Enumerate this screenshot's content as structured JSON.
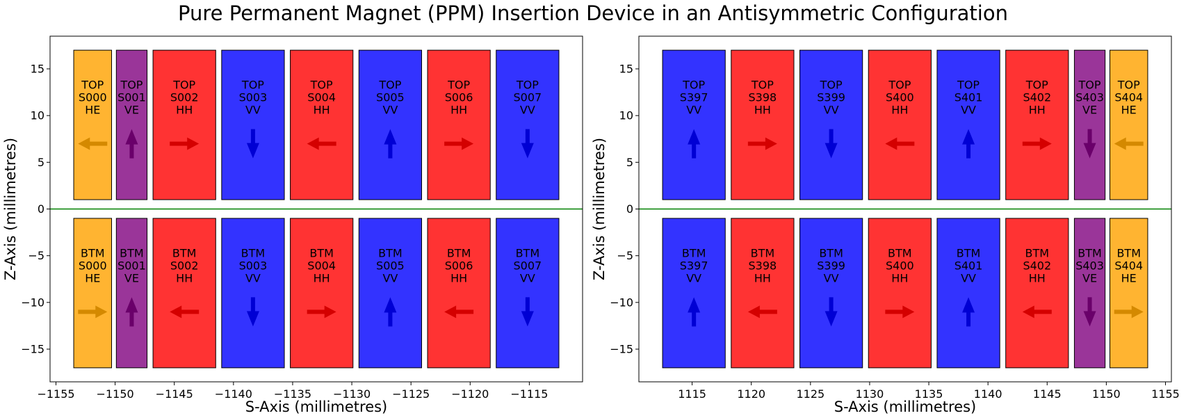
{
  "title": "Pure Permanent Magnet (PPM) Insertion Device in an Antisymmetric Configuration",
  "colors": {
    "HE": "#ffb431",
    "VE": "#9a3599",
    "HH": "#ff3333",
    "VV": "#3333ff",
    "arrow_HE": "#d48900",
    "arrow_VE": "#6a006a",
    "arrow_HH": "#d40000",
    "arrow_VV": "#0000d4",
    "centerline": "#008000"
  },
  "chart_data": [
    {
      "type": "magnet-layout",
      "xlabel": "S-Axis (millimetres)",
      "ylabel": "Z-Axis (millimetres)",
      "xlim": [
        -1155.5,
        -1110.5
      ],
      "ylim": [
        -18.5,
        18.5
      ],
      "xticks": [
        -1155,
        -1150,
        -1145,
        -1140,
        -1135,
        -1130,
        -1125,
        -1120,
        -1115
      ],
      "yticks": [
        15,
        10,
        5,
        0,
        -5,
        -10,
        -15
      ],
      "centerline_z": 0,
      "magnets": [
        {
          "row": "TOP",
          "id": "S000",
          "type": "HE",
          "s0": -1153.5,
          "s1": -1150.3,
          "z0": 1,
          "z1": 17,
          "dir": "left"
        },
        {
          "row": "TOP",
          "id": "S001",
          "type": "VE",
          "s0": -1149.9,
          "s1": -1147.3,
          "z0": 1,
          "z1": 17,
          "dir": "up"
        },
        {
          "row": "TOP",
          "id": "S002",
          "type": "HH",
          "s0": -1146.8,
          "s1": -1141.5,
          "z0": 1,
          "z1": 17,
          "dir": "right"
        },
        {
          "row": "TOP",
          "id": "S003",
          "type": "VV",
          "s0": -1141.0,
          "s1": -1135.7,
          "z0": 1,
          "z1": 17,
          "dir": "down"
        },
        {
          "row": "TOP",
          "id": "S004",
          "type": "HH",
          "s0": -1135.2,
          "s1": -1129.9,
          "z0": 1,
          "z1": 17,
          "dir": "left"
        },
        {
          "row": "TOP",
          "id": "S005",
          "type": "VV",
          "s0": -1129.4,
          "s1": -1124.1,
          "z0": 1,
          "z1": 17,
          "dir": "up"
        },
        {
          "row": "TOP",
          "id": "S006",
          "type": "HH",
          "s0": -1123.6,
          "s1": -1118.3,
          "z0": 1,
          "z1": 17,
          "dir": "right"
        },
        {
          "row": "TOP",
          "id": "S007",
          "type": "VV",
          "s0": -1117.8,
          "s1": -1112.5,
          "z0": 1,
          "z1": 17,
          "dir": "down"
        },
        {
          "row": "BTM",
          "id": "S000",
          "type": "HE",
          "s0": -1153.5,
          "s1": -1150.3,
          "z0": -17,
          "z1": -1,
          "dir": "right"
        },
        {
          "row": "BTM",
          "id": "S001",
          "type": "VE",
          "s0": -1149.9,
          "s1": -1147.3,
          "z0": -17,
          "z1": -1,
          "dir": "up"
        },
        {
          "row": "BTM",
          "id": "S002",
          "type": "HH",
          "s0": -1146.8,
          "s1": -1141.5,
          "z0": -17,
          "z1": -1,
          "dir": "left"
        },
        {
          "row": "BTM",
          "id": "S003",
          "type": "VV",
          "s0": -1141.0,
          "s1": -1135.7,
          "z0": -17,
          "z1": -1,
          "dir": "down"
        },
        {
          "row": "BTM",
          "id": "S004",
          "type": "HH",
          "s0": -1135.2,
          "s1": -1129.9,
          "z0": -17,
          "z1": -1,
          "dir": "right"
        },
        {
          "row": "BTM",
          "id": "S005",
          "type": "VV",
          "s0": -1129.4,
          "s1": -1124.1,
          "z0": -17,
          "z1": -1,
          "dir": "up"
        },
        {
          "row": "BTM",
          "id": "S006",
          "type": "HH",
          "s0": -1123.6,
          "s1": -1118.3,
          "z0": -17,
          "z1": -1,
          "dir": "left"
        },
        {
          "row": "BTM",
          "id": "S007",
          "type": "VV",
          "s0": -1117.8,
          "s1": -1112.5,
          "z0": -17,
          "z1": -1,
          "dir": "down"
        }
      ]
    },
    {
      "type": "magnet-layout",
      "xlabel": "S-Axis (millimetres)",
      "ylabel": "Z-Axis (millimetres)",
      "xlim": [
        1110.5,
        1155.5
      ],
      "ylim": [
        -18.5,
        18.5
      ],
      "xticks": [
        1115,
        1120,
        1125,
        1130,
        1135,
        1140,
        1145,
        1150,
        1155
      ],
      "yticks": [
        15,
        10,
        5,
        0,
        -5,
        -10,
        -15
      ],
      "centerline_z": 0,
      "magnets": [
        {
          "row": "TOP",
          "id": "S397",
          "type": "VV",
          "s0": 1112.5,
          "s1": 1117.8,
          "z0": 1,
          "z1": 17,
          "dir": "up"
        },
        {
          "row": "TOP",
          "id": "S398",
          "type": "HH",
          "s0": 1118.3,
          "s1": 1123.6,
          "z0": 1,
          "z1": 17,
          "dir": "right"
        },
        {
          "row": "TOP",
          "id": "S399",
          "type": "VV",
          "s0": 1124.1,
          "s1": 1129.4,
          "z0": 1,
          "z1": 17,
          "dir": "down"
        },
        {
          "row": "TOP",
          "id": "S400",
          "type": "HH",
          "s0": 1129.9,
          "s1": 1135.2,
          "z0": 1,
          "z1": 17,
          "dir": "left"
        },
        {
          "row": "TOP",
          "id": "S401",
          "type": "VV",
          "s0": 1135.7,
          "s1": 1141.0,
          "z0": 1,
          "z1": 17,
          "dir": "up"
        },
        {
          "row": "TOP",
          "id": "S402",
          "type": "HH",
          "s0": 1141.5,
          "s1": 1146.8,
          "z0": 1,
          "z1": 17,
          "dir": "right"
        },
        {
          "row": "TOP",
          "id": "S403",
          "type": "VE",
          "s0": 1147.3,
          "s1": 1149.9,
          "z0": 1,
          "z1": 17,
          "dir": "down"
        },
        {
          "row": "TOP",
          "id": "S404",
          "type": "HE",
          "s0": 1150.3,
          "s1": 1153.5,
          "z0": 1,
          "z1": 17,
          "dir": "left"
        },
        {
          "row": "BTM",
          "id": "S397",
          "type": "VV",
          "s0": 1112.5,
          "s1": 1117.8,
          "z0": -17,
          "z1": -1,
          "dir": "up"
        },
        {
          "row": "BTM",
          "id": "S398",
          "type": "HH",
          "s0": 1118.3,
          "s1": 1123.6,
          "z0": -17,
          "z1": -1,
          "dir": "left"
        },
        {
          "row": "BTM",
          "id": "S399",
          "type": "VV",
          "s0": 1124.1,
          "s1": 1129.4,
          "z0": -17,
          "z1": -1,
          "dir": "down"
        },
        {
          "row": "BTM",
          "id": "S400",
          "type": "HH",
          "s0": 1129.9,
          "s1": 1135.2,
          "z0": -17,
          "z1": -1,
          "dir": "right"
        },
        {
          "row": "BTM",
          "id": "S401",
          "type": "VV",
          "s0": 1135.7,
          "s1": 1141.0,
          "z0": -17,
          "z1": -1,
          "dir": "up"
        },
        {
          "row": "BTM",
          "id": "S402",
          "type": "HH",
          "s0": 1141.5,
          "s1": 1146.8,
          "z0": -17,
          "z1": -1,
          "dir": "left"
        },
        {
          "row": "BTM",
          "id": "S403",
          "type": "VE",
          "s0": 1147.3,
          "s1": 1149.9,
          "z0": -17,
          "z1": -1,
          "dir": "down"
        },
        {
          "row": "BTM",
          "id": "S404",
          "type": "HE",
          "s0": 1150.3,
          "s1": 1153.5,
          "z0": -17,
          "z1": -1,
          "dir": "right"
        }
      ]
    }
  ]
}
